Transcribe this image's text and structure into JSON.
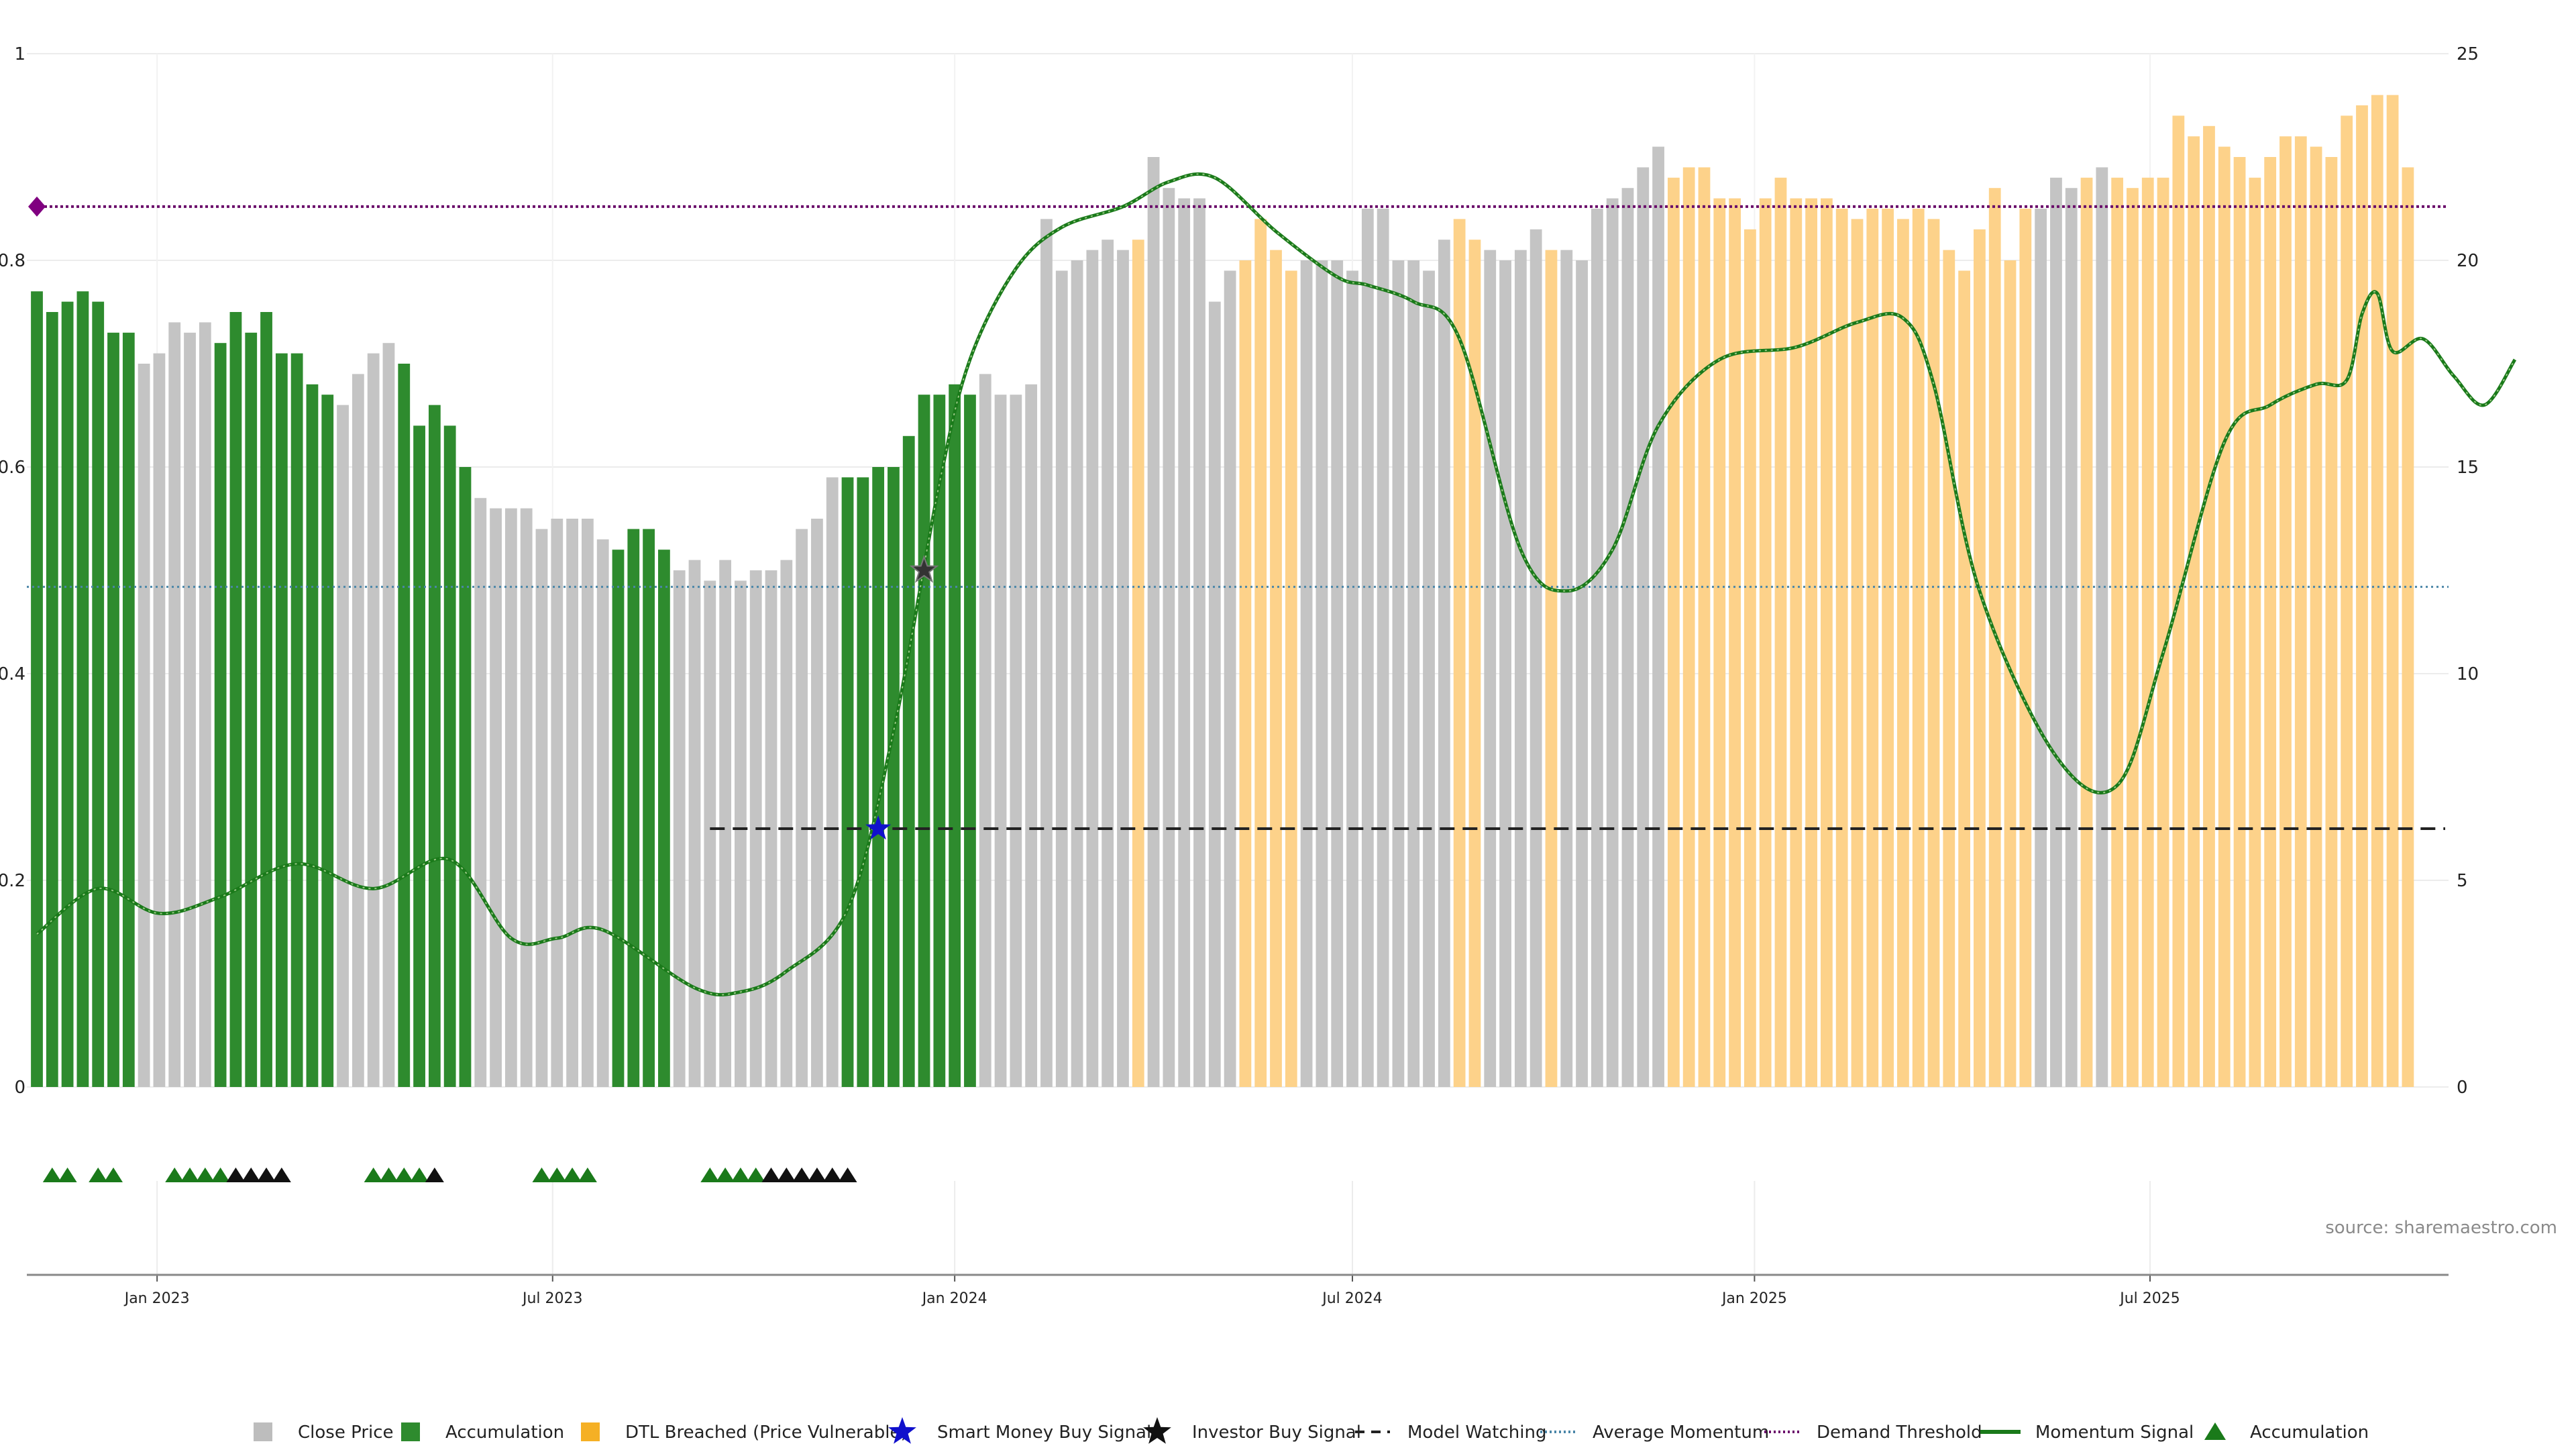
{
  "chart_data": {
    "type": "bar",
    "title": "",
    "xlabel": "",
    "ylabel": "",
    "left_axis": {
      "ylim": [
        0,
        1
      ],
      "ticks": [
        0,
        0.2,
        0.4,
        0.6,
        0.8,
        1
      ],
      "tick_labels": [
        "0",
        "0.2",
        "0.4",
        "0.6",
        "0.8",
        "1"
      ]
    },
    "right_axis": {
      "ylim": [
        0,
        25
      ],
      "ticks": [
        0,
        5,
        10,
        15,
        20,
        25
      ],
      "tick_labels": [
        "0",
        "5",
        "10",
        "15",
        "20",
        "25"
      ]
    },
    "x_range": [
      "2022-11-07",
      "2025-11-10"
    ],
    "x_ticks": [
      {
        "date": "2023-01-01",
        "label": "Jan 2023"
      },
      {
        "date": "2023-07-01",
        "label": "Jul 2023"
      },
      {
        "date": "2024-01-01",
        "label": "Jan 2024"
      },
      {
        "date": "2024-07-01",
        "label": "Jul 2024"
      },
      {
        "date": "2025-01-01",
        "label": "Jan 2025"
      },
      {
        "date": "2025-07-01",
        "label": "Jul 2025"
      }
    ],
    "grid": true,
    "legend_position": "bottom",
    "bar_series": {
      "name": "Close Price",
      "start_date": "2022-11-07",
      "interval": "weekly",
      "values": [
        0.77,
        0.75,
        0.76,
        0.77,
        0.76,
        0.73,
        0.73,
        0.7,
        0.71,
        0.74,
        0.73,
        0.74,
        0.72,
        0.75,
        0.73,
        0.75,
        0.71,
        0.71,
        0.68,
        0.67,
        0.66,
        0.69,
        0.71,
        0.72,
        0.7,
        0.64,
        0.66,
        0.64,
        0.6,
        0.57,
        0.56,
        0.56,
        0.56,
        0.54,
        0.55,
        0.55,
        0.55,
        0.53,
        0.52,
        0.54,
        0.54,
        0.52,
        0.5,
        0.51,
        0.49,
        0.51,
        0.49,
        0.5,
        0.5,
        0.51,
        0.54,
        0.55,
        0.59,
        0.59,
        0.59,
        0.6,
        0.6,
        0.63,
        0.67,
        0.67,
        0.68,
        0.67,
        0.69,
        0.67,
        0.67,
        0.68,
        0.84,
        0.79,
        0.8,
        0.81,
        0.82,
        0.81,
        0.82,
        0.9,
        0.87,
        0.86,
        0.86,
        0.76,
        0.79,
        0.8,
        0.84,
        0.81,
        0.79,
        0.8,
        0.8,
        0.8,
        0.79,
        0.85,
        0.85,
        0.8,
        0.8,
        0.79,
        0.82,
        0.84,
        0.82,
        0.81,
        0.8,
        0.81,
        0.83,
        0.81,
        0.81,
        0.8,
        0.85,
        0.86,
        0.87,
        0.89,
        0.91,
        0.88,
        0.89,
        0.89,
        0.86,
        0.86,
        0.83,
        0.86,
        0.88,
        0.86,
        0.86,
        0.86,
        0.85,
        0.84,
        0.85,
        0.85,
        0.84,
        0.85,
        0.84,
        0.81,
        0.79,
        0.83,
        0.87,
        0.8,
        0.85,
        0.85,
        0.88,
        0.87,
        0.88,
        0.89,
        0.88,
        0.87,
        0.88,
        0.88,
        0.94,
        0.92,
        0.93,
        0.91,
        0.9,
        0.88,
        0.9,
        0.92,
        0.92,
        0.91,
        0.9,
        0.94,
        0.95,
        0.96,
        0.96,
        0.89
      ],
      "states": "GGGGGGGNNNNNGGGGGGGGNNNNGGGGGNNNNNNNNNGGGGNNNNNNNNNNNGGGGGGGGGNNNNNNNNNNYNNNNNNYYYYNNNNNNNNNNYYNNNNYNNNNNNNYYYYYYYYYYYYYYYYYYYYYYYYNNNYNYYYYYYYYYYYYYYYYYYYYYYYYY"
    },
    "category_colors": {
      "N": "#c4c4c4",
      "G": "#2e8b2e",
      "Y": "#fdd28a"
    },
    "momentum_signal": {
      "name": "Momentum Signal",
      "axis": "right",
      "points": [
        [
          "2022-11-07",
          3.7
        ],
        [
          "2022-12-05",
          4.8
        ],
        [
          "2023-01-02",
          4.2
        ],
        [
          "2023-01-30",
          4.6
        ],
        [
          "2023-03-06",
          5.4
        ],
        [
          "2023-04-10",
          4.8
        ],
        [
          "2023-05-15",
          5.5
        ],
        [
          "2023-06-12",
          3.6
        ],
        [
          "2023-07-03",
          3.6
        ],
        [
          "2023-07-24",
          3.8
        ],
        [
          "2023-09-04",
          2.4
        ],
        [
          "2023-09-25",
          2.3
        ],
        [
          "2023-10-16",
          2.8
        ],
        [
          "2023-11-13",
          4.3
        ],
        [
          "2023-12-04",
          8.6
        ],
        [
          "2023-12-25",
          14.6
        ],
        [
          "2024-01-08",
          17.6
        ],
        [
          "2024-01-29",
          19.8
        ],
        [
          "2024-02-19",
          20.8
        ],
        [
          "2024-03-18",
          21.3
        ],
        [
          "2024-04-08",
          21.9
        ],
        [
          "2024-04-29",
          22.0
        ],
        [
          "2024-05-27",
          20.7
        ],
        [
          "2024-06-24",
          19.6
        ],
        [
          "2024-07-08",
          19.4
        ],
        [
          "2024-07-29",
          19.0
        ],
        [
          "2024-08-19",
          18.1
        ],
        [
          "2024-09-16",
          13.0
        ],
        [
          "2024-10-07",
          12.0
        ],
        [
          "2024-10-28",
          13.0
        ],
        [
          "2024-11-18",
          16.0
        ],
        [
          "2024-12-16",
          17.6
        ],
        [
          "2025-01-20",
          17.9
        ],
        [
          "2025-02-17",
          18.5
        ],
        [
          "2025-03-10",
          18.6
        ],
        [
          "2025-03-24",
          17.0
        ],
        [
          "2025-04-14",
          12.0
        ],
        [
          "2025-05-19",
          8.0
        ],
        [
          "2025-06-16",
          7.3
        ],
        [
          "2025-07-07",
          10.5
        ],
        [
          "2025-08-04",
          15.6
        ],
        [
          "2025-08-25",
          16.5
        ],
        [
          "2025-09-15",
          17.0
        ],
        [
          "2025-09-29",
          17.1
        ],
        [
          "2025-10-06",
          18.7
        ],
        [
          "2025-10-13",
          19.2
        ],
        [
          "2025-10-20",
          17.8
        ],
        [
          "2025-11-03",
          18.1
        ],
        [
          "2025-11-17",
          17.2
        ],
        [
          "2025-12-01",
          16.5
        ],
        [
          "2025-12-15",
          17.6
        ]
      ]
    },
    "average_momentum": {
      "name": "Average Momentum",
      "axis": "right",
      "value": 12.1
    },
    "demand_threshold": {
      "name": "Demand Threshold",
      "axis": "right",
      "value": 21.3,
      "start_marker_date": "2022-11-07"
    },
    "model_watching": {
      "name": "Model Watching",
      "axis": "left",
      "value": 0.25,
      "start_date": "2023-09-11",
      "end_date": "2025-11-10"
    },
    "smart_money_buy_signal": {
      "name": "Smart Money Buy Signal",
      "date": "2023-11-27",
      "value": 0.25
    },
    "investor_buy_signal": {
      "name": "Investor Buy Signal",
      "date": "2023-12-18",
      "value": 0.5
    },
    "accumulation_markers": {
      "name": "Accumulation",
      "green_dates": [
        "2022-11-14",
        "2022-11-21",
        "2022-12-05",
        "2022-12-12",
        "2023-01-09",
        "2023-01-16",
        "2023-01-23",
        "2023-01-30",
        "2023-04-10",
        "2023-04-17",
        "2023-04-24",
        "2023-05-01",
        "2023-06-26",
        "2023-07-03",
        "2023-07-10",
        "2023-07-17",
        "2023-09-11",
        "2023-09-18",
        "2023-09-25",
        "2023-10-02"
      ],
      "black_dates": [
        "2023-02-06",
        "2023-02-13",
        "2023-02-20",
        "2023-02-27",
        "2023-05-08",
        "2023-10-09",
        "2023-10-16",
        "2023-10-23",
        "2023-10-30",
        "2023-11-06",
        "2023-11-13"
      ]
    },
    "legend": [
      {
        "label": "Close Price",
        "symbol": "square",
        "color": "#bdbdbd"
      },
      {
        "label": "Accumulation",
        "symbol": "square",
        "color": "#2e8b2e"
      },
      {
        "label": "DTL Breached (Price Vulnerable)",
        "symbol": "square",
        "color": "#f5b025"
      },
      {
        "label": "Smart Money Buy Signal",
        "symbol": "star",
        "color": "#1010cc"
      },
      {
        "label": "Investor Buy Signal",
        "symbol": "star",
        "color": "#111111"
      },
      {
        "label": "Model Watching",
        "symbol": "dash",
        "color": "#222222"
      },
      {
        "label": "Average Momentum",
        "symbol": "dotted",
        "color": "#4a86a8"
      },
      {
        "label": "Demand Threshold",
        "symbol": "dotted",
        "color": "#6a0a6a"
      },
      {
        "label": "Momentum Signal",
        "symbol": "line",
        "color": "#1a7a1a"
      },
      {
        "label": "Accumulation",
        "symbol": "triangle",
        "color": "#1a7a1a"
      }
    ]
  },
  "source_text": "source: sharemaestro.com"
}
